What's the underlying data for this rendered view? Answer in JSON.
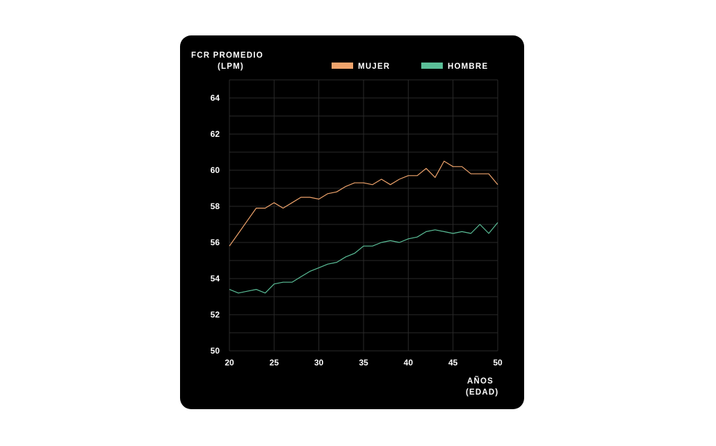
{
  "chart_data": {
    "type": "line",
    "ylabel_lines": [
      "FCR PROMEDIO",
      "(LPM)"
    ],
    "xlabel_lines": [
      "AÑOS",
      "(EDAD)"
    ],
    "xlim": [
      20,
      50
    ],
    "ylim": [
      50,
      65
    ],
    "x_ticks": [
      20,
      25,
      30,
      35,
      40,
      45,
      50
    ],
    "y_ticks": [
      50,
      52,
      54,
      56,
      58,
      60,
      62,
      64
    ],
    "grid": true,
    "legend_position": "top",
    "x": [
      20,
      21,
      22,
      23,
      24,
      25,
      26,
      27,
      28,
      29,
      30,
      31,
      32,
      33,
      34,
      35,
      36,
      37,
      38,
      39,
      40,
      41,
      42,
      43,
      44,
      45,
      46,
      47,
      48,
      49,
      50
    ],
    "series": [
      {
        "name": "MUJER",
        "color": "#f0a46c",
        "values": [
          55.8,
          56.5,
          57.2,
          57.9,
          57.9,
          58.2,
          57.9,
          58.2,
          58.5,
          58.5,
          58.4,
          58.7,
          58.8,
          59.1,
          59.3,
          59.3,
          59.2,
          59.5,
          59.2,
          59.5,
          59.7,
          59.7,
          60.1,
          59.6,
          60.5,
          60.2,
          60.2,
          59.8,
          59.8,
          59.8,
          59.2
        ]
      },
      {
        "name": "HOMBRE",
        "color": "#5bbf98",
        "values": [
          53.4,
          53.2,
          53.3,
          53.4,
          53.2,
          53.7,
          53.8,
          53.8,
          54.1,
          54.4,
          54.6,
          54.8,
          54.9,
          55.2,
          55.4,
          55.8,
          55.8,
          56.0,
          56.1,
          56.0,
          56.2,
          56.3,
          56.6,
          56.7,
          56.6,
          56.5,
          56.6,
          56.5,
          57.0,
          56.5,
          57.1
        ]
      }
    ]
  }
}
